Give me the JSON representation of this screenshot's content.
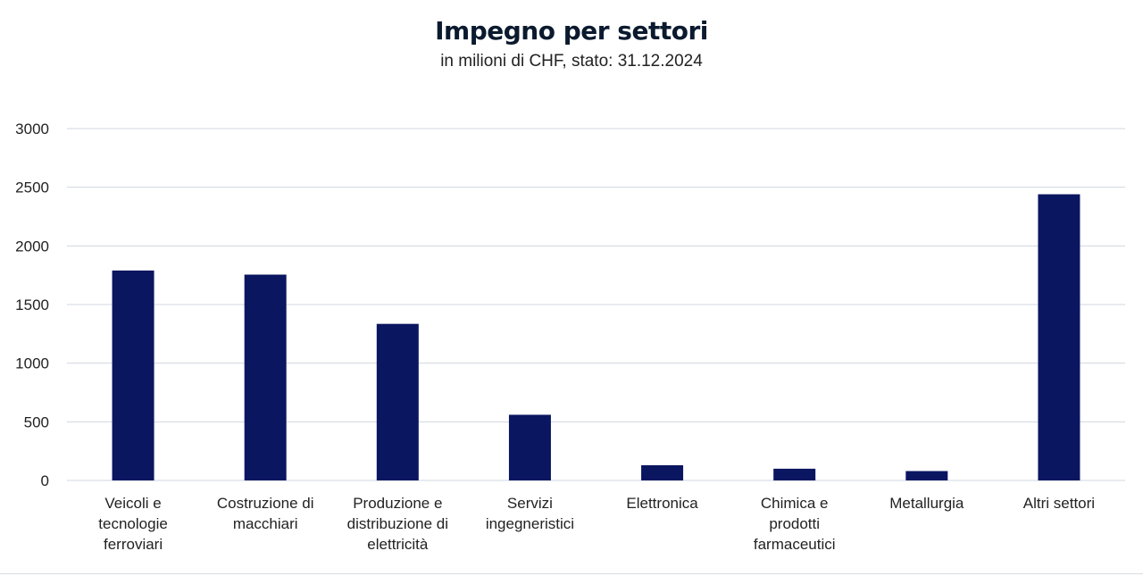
{
  "chart_data": {
    "type": "bar",
    "title": "Impegno per settori",
    "subtitle": "in milioni di CHF, stato: 31.12.2024",
    "categories": [
      [
        "Veicoli e",
        "tecnologie",
        "ferroviari"
      ],
      [
        "Costruzione di",
        "macchiari"
      ],
      [
        "Produzione e",
        "distribuzione di",
        "elettricità"
      ],
      [
        "Servizi",
        "ingegneristici"
      ],
      [
        "Elettronica"
      ],
      [
        "Chimica e",
        "prodotti",
        "farmaceutici"
      ],
      [
        "Metallurgia"
      ],
      [
        "Altri settori"
      ]
    ],
    "values": [
      1790,
      1755,
      1335,
      560,
      130,
      100,
      80,
      2440
    ],
    "ylim": [
      0,
      3000
    ],
    "yticks": [
      "0",
      "500",
      "1000",
      "1500",
      "2000",
      "2500",
      "3000"
    ],
    "grid": true,
    "bar_color": "#0b1660",
    "grid_color": "#d0d7e1"
  }
}
